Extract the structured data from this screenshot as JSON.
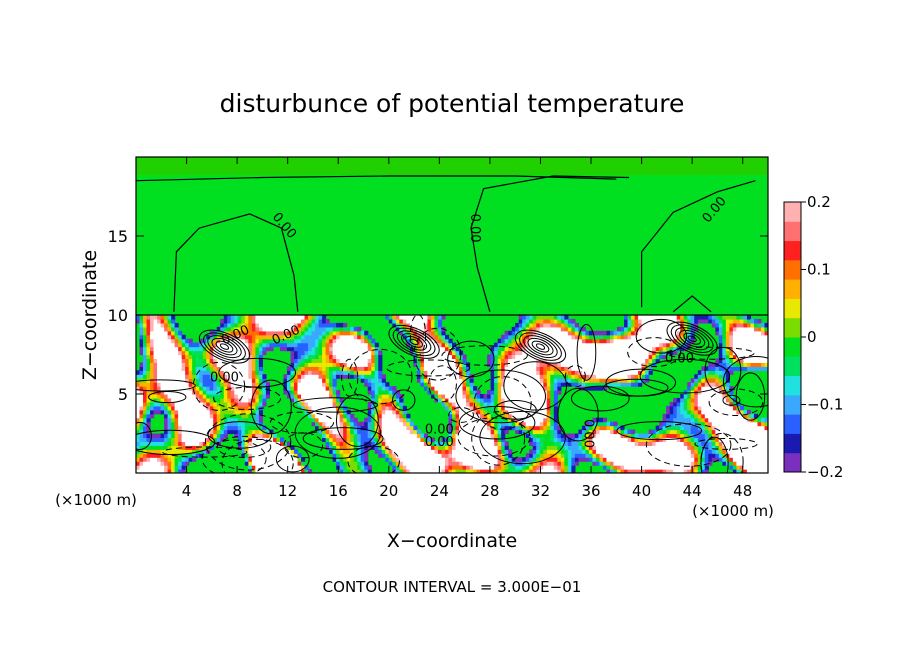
{
  "chart_data": {
    "type": "heatmap",
    "title": "disturbunce of potential temperature",
    "xlabel": "X−coordinate",
    "ylabel": "Z−coordinate",
    "x_unit_label": "(×1000 m)",
    "x_unit_label_right": "(×1000 m)",
    "xlim": [
      0,
      50
    ],
    "ylim": [
      0,
      20
    ],
    "x_ticks": [
      4,
      8,
      12,
      16,
      20,
      24,
      28,
      32,
      36,
      40,
      44,
      48
    ],
    "y_ticks": [
      5,
      10,
      15
    ],
    "colorbar": {
      "range": [
        -0.2,
        0.2
      ],
      "tick_labels": [
        "0.2",
        "0.1",
        "0",
        "−0.1",
        "−0.2"
      ],
      "tick_values": [
        0.2,
        0.1,
        0,
        -0.1,
        -0.2
      ],
      "colors": [
        "#7b2fbf",
        "#1a1ab0",
        "#2a60ff",
        "#3aa8ff",
        "#20e0e0",
        "#00e060",
        "#00e020",
        "#7bdc00",
        "#e8e800",
        "#ffb000",
        "#ff7000",
        "#ff2020",
        "#ff7070",
        "#ffb0b0"
      ]
    },
    "contour_labels": [
      "0.00",
      "0.00",
      "0.00",
      "0.00",
      "0.00",
      "0.00",
      "0.00",
      "0.00",
      "0.00",
      "0.00"
    ],
    "contour_interval_text": "CONTOUR INTERVAL = 3.000E−01",
    "upper_region_value": 0.0,
    "boundary_z": 10
  }
}
